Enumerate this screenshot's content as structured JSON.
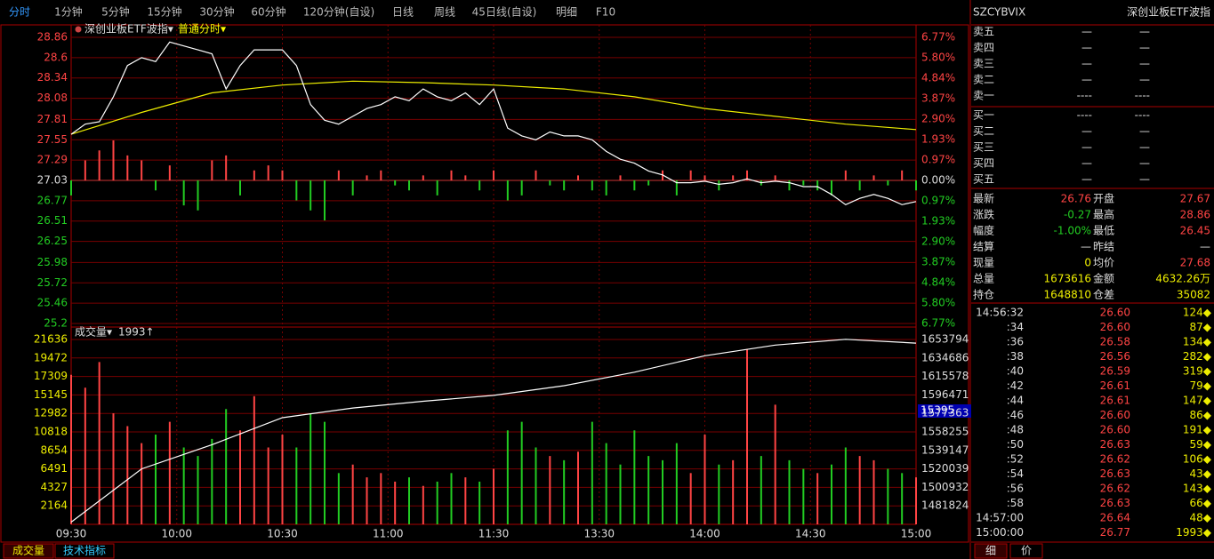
{
  "toolbar": {
    "tabs": [
      "分时",
      "1分钟",
      "5分钟",
      "15分钟",
      "30分钟",
      "60分钟",
      "120分钟(自设)",
      "日线",
      "周线",
      "45日线(自设)",
      "明细",
      "F10"
    ]
  },
  "price_chart": {
    "title": "深创业板ETF波指▾",
    "mode": "普通分时▾",
    "ylim": [
      25.2,
      28.86
    ],
    "yticks": [
      28.86,
      28.6,
      28.34,
      28.08,
      27.81,
      27.55,
      27.29,
      27.03,
      26.77,
      26.51,
      26.25,
      25.98,
      25.72,
      25.46,
      25.2
    ],
    "y2lim": [
      -6.77,
      6.77
    ],
    "y2ticks": [
      {
        "value": 6.77,
        "label": "6.77%"
      },
      {
        "value": 5.8,
        "label": "5.80%"
      },
      {
        "value": 4.84,
        "label": "4.84%"
      },
      {
        "value": 3.87,
        "label": "3.87%"
      },
      {
        "value": 2.9,
        "label": "2.90%"
      },
      {
        "value": 1.93,
        "label": "1.93%"
      },
      {
        "value": 0.97,
        "label": "0.97%"
      },
      {
        "value": 0,
        "label": "0.00%"
      },
      {
        "value": -0.97,
        "label": "0.97%"
      },
      {
        "value": -1.93,
        "label": "1.93%"
      },
      {
        "value": -2.9,
        "label": "2.90%"
      },
      {
        "value": -3.87,
        "label": "3.87%"
      },
      {
        "value": -4.84,
        "label": "4.84%"
      },
      {
        "value": -5.8,
        "label": "5.80%"
      },
      {
        "value": -6.77,
        "label": "6.77%"
      }
    ],
    "price": [
      27.62,
      27.75,
      27.78,
      28.1,
      28.5,
      28.6,
      28.55,
      28.8,
      28.75,
      28.7,
      28.65,
      28.2,
      28.5,
      28.7,
      28.7,
      28.7,
      28.5,
      28.0,
      27.8,
      27.75,
      27.85,
      27.95,
      28.0,
      28.1,
      28.05,
      28.2,
      28.1,
      28.05,
      28.15,
      28.0,
      28.2,
      27.7,
      27.6,
      27.55,
      27.65,
      27.6,
      27.6,
      27.55,
      27.4,
      27.3,
      27.25,
      27.15,
      27.1,
      27.0,
      27.0,
      27.02,
      26.98,
      27.0,
      27.05,
      27.0,
      27.02,
      27.0,
      26.95,
      26.95,
      26.85,
      26.72,
      26.8,
      26.85,
      26.8,
      26.72,
      26.76
    ],
    "average": [
      27.62,
      27.9,
      28.15,
      28.25,
      28.3,
      28.28,
      28.25,
      28.2,
      28.1,
      27.95,
      27.85,
      27.75,
      27.68
    ],
    "imbalance": [
      -3,
      4,
      6,
      8,
      5,
      4,
      -2,
      3,
      -5,
      -6,
      4,
      5,
      -3,
      2,
      3,
      2,
      -4,
      -6,
      -8,
      2,
      -3,
      1,
      2,
      -1,
      -2,
      1,
      -3,
      2,
      1,
      -2,
      2,
      -4,
      -3,
      2,
      -1,
      -2,
      1,
      -2,
      -3,
      1,
      -2,
      -1,
      2,
      -3,
      2,
      1,
      -2,
      1,
      2,
      -1,
      1,
      -2,
      -1,
      -2,
      -3,
      2,
      -2,
      1,
      -1,
      2,
      -2
    ]
  },
  "volume_chart": {
    "title": "成交量▾",
    "last": "1993↑",
    "cursor": "15395",
    "ylim": [
      0,
      22677
    ],
    "yticks": [
      21636,
      19472,
      17309,
      15145,
      12982,
      10818,
      8654,
      6491,
      4327,
      2164
    ],
    "y2lim": [
      1462716,
      1662990
    ],
    "y2ticks": [
      1653794,
      1634686,
      1615578,
      1596471,
      1577363,
      1558255,
      1539147,
      1520039,
      1500932,
      1481824
    ],
    "volume": [
      17500,
      16000,
      19000,
      13000,
      11500,
      9500,
      10500,
      12000,
      9000,
      8000,
      10000,
      13500,
      11000,
      15000,
      9000,
      10500,
      9000,
      13000,
      12000,
      6000,
      7000,
      5500,
      6000,
      5000,
      5500,
      4500,
      5000,
      6000,
      5500,
      5000,
      6500,
      11000,
      12000,
      9000,
      8000,
      7500,
      8500,
      12000,
      9500,
      7000,
      11000,
      8000,
      7500,
      9500,
      6000,
      10500,
      7000,
      7500,
      20500,
      8000,
      14000,
      7500,
      6500,
      6000,
      7000,
      9000,
      8000,
      7500,
      6500,
      6000,
      5500
    ],
    "cumulative": [
      1465000,
      1520000,
      1545000,
      1573000,
      1583000,
      1590000,
      1596000,
      1606000,
      1620000,
      1637000,
      1648000,
      1654000,
      1650000
    ]
  },
  "time_labels": [
    "09:30",
    "10:00",
    "10:30",
    "11:00",
    "11:30",
    "13:30",
    "14:00",
    "14:30",
    "15:00"
  ],
  "bottom_tabs": [
    "成交量",
    "技术指标"
  ],
  "side": {
    "code": "SZCYBVIX",
    "name": "深创业板ETF波指",
    "asks": [
      [
        "卖五",
        "—",
        "—"
      ],
      [
        "卖四",
        "—",
        "—"
      ],
      [
        "卖三",
        "—",
        "—"
      ],
      [
        "卖二",
        "—",
        "—"
      ],
      [
        "卖一",
        "----",
        "----"
      ]
    ],
    "bids": [
      [
        "买一",
        "----",
        "----"
      ],
      [
        "买二",
        "—",
        "—"
      ],
      [
        "买三",
        "—",
        "—"
      ],
      [
        "买四",
        "—",
        "—"
      ],
      [
        "买五",
        "—",
        "—"
      ]
    ],
    "stats": [
      [
        "最新",
        "26.76",
        "开盘",
        "27.67"
      ],
      [
        "涨跌",
        "-0.27",
        "最高",
        "28.86"
      ],
      [
        "幅度",
        "-1.00%",
        "最低",
        "26.45"
      ],
      [
        "结算",
        "—",
        "昨结",
        "—"
      ],
      [
        "现量",
        "0",
        "均价",
        "27.68"
      ],
      [
        "总量",
        "1673616",
        "金额",
        "4632.26万"
      ],
      [
        "持仓",
        "1648810",
        "仓差",
        "35082"
      ]
    ],
    "ticks": [
      [
        "14:56:32",
        "26.60",
        "124◆"
      ],
      [
        ":34",
        "26.60",
        "87◆"
      ],
      [
        ":36",
        "26.58",
        "134◆"
      ],
      [
        ":38",
        "26.56",
        "282◆"
      ],
      [
        ":40",
        "26.59",
        "319◆"
      ],
      [
        ":42",
        "26.61",
        "79◆"
      ],
      [
        ":44",
        "26.61",
        "147◆"
      ],
      [
        ":46",
        "26.60",
        "86◆"
      ],
      [
        ":48",
        "26.60",
        "191◆"
      ],
      [
        ":50",
        "26.63",
        "59◆"
      ],
      [
        ":52",
        "26.62",
        "106◆"
      ],
      [
        ":54",
        "26.63",
        "43◆"
      ],
      [
        ":56",
        "26.62",
        "143◆"
      ],
      [
        ":58",
        "26.63",
        "66◆"
      ],
      [
        "14:57:00",
        "26.64",
        "48◆"
      ],
      [
        "15:00:00",
        "26.77",
        "1993◆"
      ]
    ],
    "tabs": [
      "细",
      "价"
    ]
  }
}
